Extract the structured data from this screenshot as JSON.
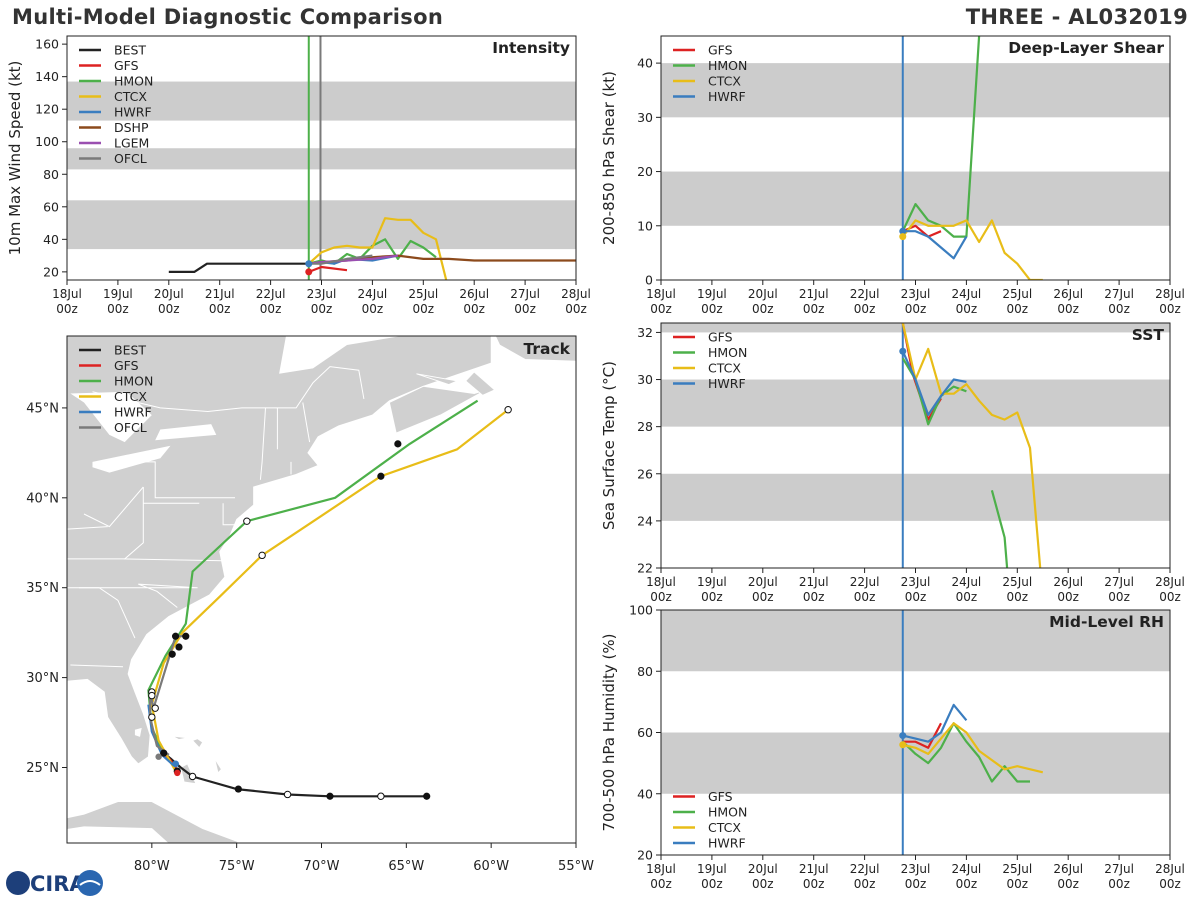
{
  "header": {
    "title_left": "Multi-Model Diagnostic Comparison",
    "title_right": "THREE - AL032019"
  },
  "logo": {
    "text": "CIRA"
  },
  "colors": {
    "BEST": "#222222",
    "GFS": "#dd2222",
    "HMON": "#4db04a",
    "CTCX": "#e8bd18",
    "HWRF": "#3a7dbf",
    "DSHP": "#8c4a1c",
    "LGEM": "#9a4fb0",
    "OFCL": "#7a7a7a",
    "shade": "#cccccc",
    "land": "#d0d0d0"
  },
  "time_axis": {
    "ticks": [
      [
        "18Jul",
        "00z"
      ],
      [
        "19Jul",
        "00z"
      ],
      [
        "20Jul",
        "00z"
      ],
      [
        "21Jul",
        "00z"
      ],
      [
        "22Jul",
        "00z"
      ],
      [
        "23Jul",
        "00z"
      ],
      [
        "24Jul",
        "00z"
      ],
      [
        "25Jul",
        "00z"
      ],
      [
        "26Jul",
        "00z"
      ],
      [
        "27Jul",
        "00z"
      ],
      [
        "28Jul",
        "00z"
      ]
    ],
    "range_days": [
      0,
      10
    ]
  },
  "chart_data": [
    {
      "id": "intensity",
      "type": "line",
      "title": "Intensity",
      "ylabel": "10m Max Wind Speed (kt)",
      "ylim": [
        15,
        165
      ],
      "yticks": [
        20,
        40,
        60,
        80,
        100,
        120,
        140,
        160
      ],
      "shade_bands": [
        [
          34,
          64
        ],
        [
          83,
          96
        ],
        [
          113,
          137
        ]
      ],
      "vlines": [
        {
          "x": 4.75,
          "color": "HMON"
        },
        {
          "x": 4.98,
          "color": "OFCL"
        }
      ],
      "legend": [
        "BEST",
        "GFS",
        "HMON",
        "CTCX",
        "HWRF",
        "DSHP",
        "LGEM",
        "OFCL"
      ],
      "series": [
        {
          "name": "BEST",
          "x": [
            2.0,
            2.5,
            2.75,
            4.75
          ],
          "y": [
            20,
            20,
            25,
            25
          ]
        },
        {
          "name": "GFS",
          "x": [
            4.75,
            5.0,
            5.5
          ],
          "y": [
            20,
            23,
            21
          ]
        },
        {
          "name": "HMON",
          "x": [
            4.75,
            5.0,
            5.25,
            5.5,
            5.75,
            6.0,
            6.25,
            6.5,
            6.75,
            7.0,
            7.25
          ],
          "y": [
            25,
            27,
            25,
            31,
            28,
            36,
            40,
            28,
            39,
            35,
            29
          ]
        },
        {
          "name": "CTCX",
          "x": [
            4.75,
            5.0,
            5.25,
            5.5,
            5.75,
            6.0,
            6.25,
            6.5,
            6.75,
            7.0,
            7.25,
            7.45
          ],
          "y": [
            25,
            32,
            35,
            36,
            35,
            35,
            53,
            52,
            52,
            44,
            40,
            15
          ]
        },
        {
          "name": "HWRF",
          "x": [
            4.75,
            5.0,
            5.25,
            5.5,
            6.0,
            6.5
          ],
          "y": [
            25,
            26,
            25,
            28,
            27,
            30
          ]
        },
        {
          "name": "DSHP",
          "x": [
            4.75,
            5.0,
            5.5,
            6.0,
            6.5,
            7.0,
            7.5,
            8.0,
            9.0,
            10.0
          ],
          "y": [
            25,
            26,
            27,
            29,
            30,
            28,
            28,
            27,
            27,
            27
          ]
        },
        {
          "name": "LGEM",
          "x": [
            4.75,
            5.0,
            5.5,
            6.0,
            6.5
          ],
          "y": [
            25,
            26,
            27,
            28,
            30
          ]
        },
        {
          "name": "OFCL",
          "x": [
            4.75,
            5.0,
            5.5,
            6.0
          ],
          "y": [
            25,
            25,
            28,
            30
          ]
        }
      ],
      "markers": [
        {
          "name": "GFS",
          "x": 4.75,
          "y": 20
        },
        {
          "name": "HWRF",
          "x": 4.75,
          "y": 25
        }
      ]
    },
    {
      "id": "shear",
      "type": "line",
      "title": "Deep-Layer Shear",
      "ylabel": "200-850 hPa Shear (kt)",
      "ylim": [
        0,
        45
      ],
      "yticks": [
        0,
        10,
        20,
        30,
        40
      ],
      "shade_bands": [
        [
          10,
          20
        ],
        [
          30,
          40
        ]
      ],
      "vlines": [
        {
          "x": 4.75,
          "color": "HWRF"
        }
      ],
      "legend": [
        "GFS",
        "HMON",
        "CTCX",
        "HWRF"
      ],
      "series": [
        {
          "name": "GFS",
          "x": [
            4.75,
            5.0,
            5.25,
            5.5
          ],
          "y": [
            9,
            10,
            8,
            9
          ]
        },
        {
          "name": "HMON",
          "x": [
            4.75,
            5.0,
            5.25,
            5.5,
            5.75,
            6.0,
            6.25
          ],
          "y": [
            9,
            14,
            11,
            10,
            8,
            8,
            45
          ]
        },
        {
          "name": "CTCX",
          "x": [
            4.75,
            5.0,
            5.25,
            5.5,
            5.75,
            6.0,
            6.25,
            6.5,
            6.75,
            7.0,
            7.25,
            7.5
          ],
          "y": [
            8,
            11,
            10,
            10,
            10,
            11,
            7,
            11,
            5,
            3,
            0,
            0
          ]
        },
        {
          "name": "HWRF",
          "x": [
            4.75,
            5.0,
            5.25,
            5.5,
            5.75,
            6.0
          ],
          "y": [
            9,
            9,
            8,
            6,
            4,
            8
          ]
        }
      ],
      "markers": [
        {
          "name": "HWRF",
          "x": 4.75,
          "y": 9
        },
        {
          "name": "CTCX",
          "x": 4.75,
          "y": 8
        }
      ]
    },
    {
      "id": "sst",
      "type": "line",
      "title": "SST",
      "ylabel": "Sea Surface Temp (°C)",
      "ylim": [
        22,
        32.4
      ],
      "yticks": [
        22,
        24,
        26,
        28,
        30,
        32
      ],
      "shade_bands": [
        [
          24,
          26
        ],
        [
          28,
          30
        ],
        [
          32,
          32.4
        ]
      ],
      "vlines": [
        {
          "x": 4.75,
          "color": "HWRF"
        }
      ],
      "legend": [
        "GFS",
        "HMON",
        "CTCX",
        "HWRF"
      ],
      "series": [
        {
          "name": "GFS",
          "x": [
            4.75,
            4.95,
            5.25,
            5.5
          ],
          "y": [
            32.4,
            30.2,
            28.3,
            29.2
          ]
        },
        {
          "name": "HMON",
          "x": [
            4.75,
            5.0,
            5.25,
            5.5,
            5.75,
            6.0
          ],
          "y": [
            30.9,
            30.0,
            28.1,
            29.3,
            29.7,
            29.5
          ]
        },
        {
          "name": "HMON",
          "x": [
            6.5,
            6.75,
            6.8
          ],
          "y": [
            25.3,
            23.3,
            22.0
          ]
        },
        {
          "name": "CTCX",
          "x": [
            4.75,
            5.0,
            5.25,
            5.5,
            5.75,
            6.0,
            6.25,
            6.5,
            6.75,
            7.0,
            7.25,
            7.45
          ],
          "y": [
            32.4,
            30.0,
            31.3,
            29.4,
            29.4,
            29.8,
            29.1,
            28.5,
            28.3,
            28.6,
            27.1,
            22.0
          ]
        },
        {
          "name": "HWRF",
          "x": [
            4.75,
            5.0,
            5.25,
            5.5,
            5.75,
            6.0
          ],
          "y": [
            31.2,
            30.0,
            28.5,
            29.3,
            30.0,
            29.9
          ]
        }
      ],
      "markers": [
        {
          "name": "HWRF",
          "x": 4.75,
          "y": 31.2
        }
      ]
    },
    {
      "id": "rh",
      "type": "line",
      "title": "Mid-Level RH",
      "ylabel": "700-500 hPa Humidity (%)",
      "ylim": [
        20,
        100
      ],
      "yticks": [
        20,
        40,
        60,
        80,
        100
      ],
      "shade_bands": [
        [
          40,
          60
        ],
        [
          80,
          100
        ]
      ],
      "vlines": [
        {
          "x": 4.75,
          "color": "HWRF"
        }
      ],
      "legend": [
        "GFS",
        "HMON",
        "CTCX",
        "HWRF"
      ],
      "legend_position": "bottom-left",
      "series": [
        {
          "name": "GFS",
          "x": [
            4.75,
            5.0,
            5.25,
            5.5
          ],
          "y": [
            57,
            57,
            55,
            63
          ]
        },
        {
          "name": "HMON",
          "x": [
            4.75,
            5.0,
            5.25,
            5.5,
            5.75,
            6.0,
            6.25,
            6.5,
            6.75,
            7.0,
            7.25
          ],
          "y": [
            57,
            53,
            50,
            55,
            63,
            57,
            52,
            44,
            49,
            44,
            44
          ]
        },
        {
          "name": "CTCX",
          "x": [
            4.75,
            5.0,
            5.25,
            5.5,
            5.75,
            6.0,
            6.25,
            6.5,
            6.75,
            7.0,
            7.5
          ],
          "y": [
            56,
            55,
            53,
            58,
            63,
            60,
            54,
            51,
            48,
            49,
            47
          ]
        },
        {
          "name": "HWRF",
          "x": [
            4.75,
            5.0,
            5.25,
            5.5,
            5.75,
            6.0
          ],
          "y": [
            59,
            58,
            57,
            60,
            69,
            64
          ]
        }
      ],
      "markers": [
        {
          "name": "HWRF",
          "x": 4.75,
          "y": 59
        },
        {
          "name": "CTCX",
          "x": 4.75,
          "y": 56
        }
      ]
    },
    {
      "id": "track",
      "type": "scatter",
      "title": "Track",
      "xlim": [
        -85,
        -55
      ],
      "ylim": [
        20.8,
        49
      ],
      "xticks": [
        {
          "v": -80,
          "label": "80°W"
        },
        {
          "v": -75,
          "label": "75°W"
        },
        {
          "v": -70,
          "label": "70°W"
        },
        {
          "v": -65,
          "label": "65°W"
        },
        {
          "v": -60,
          "label": "60°W"
        },
        {
          "v": -55,
          "label": "55°W"
        }
      ],
      "yticks": [
        {
          "v": 25,
          "label": "25°N"
        },
        {
          "v": 30,
          "label": "30°N"
        },
        {
          "v": 35,
          "label": "35°N"
        },
        {
          "v": 40,
          "label": "40°N"
        },
        {
          "v": 45,
          "label": "45°N"
        }
      ],
      "legend": [
        "BEST",
        "GFS",
        "HMON",
        "CTCX",
        "HWRF",
        "OFCL"
      ],
      "series": [
        {
          "name": "BEST",
          "lon": [
            -63.8,
            -66.5,
            -69.5,
            -72.0,
            -75.0,
            -77.6,
            -78.3,
            -78.9,
            -79.3
          ],
          "lat": [
            23.4,
            23.4,
            23.4,
            23.5,
            23.8,
            24.5,
            25.0,
            25.5,
            25.8
          ]
        },
        {
          "name": "GFS",
          "lon": [
            -79.3,
            -78.9,
            -78.6,
            -78.5
          ],
          "lat": [
            25.8,
            25.4,
            25.0,
            24.7
          ]
        },
        {
          "name": "HMON",
          "lon": [
            -79.3,
            -80.0,
            -80.2,
            -79.2,
            -78.0,
            -77.6,
            -74.4,
            -69.2,
            -64.8,
            -60.8
          ],
          "lat": [
            25.8,
            27.2,
            29.3,
            31.2,
            33.0,
            35.9,
            38.7,
            40.0,
            43.0,
            45.4
          ]
        },
        {
          "name": "CTCX",
          "lon": [
            -78.6,
            -79.6,
            -80.0,
            -79.3,
            -78.2,
            -76.0,
            -73.5,
            -70.0,
            -66.5,
            -62.0,
            -59.0
          ],
          "lat": [
            24.8,
            26.5,
            28.5,
            30.8,
            32.5,
            34.5,
            36.8,
            39.0,
            41.2,
            42.7,
            44.9
          ]
        },
        {
          "name": "HWRF",
          "lon": [
            -78.7,
            -79.4,
            -80.0,
            -80.2
          ],
          "lat": [
            25.1,
            25.7,
            27.0,
            28.5
          ]
        },
        {
          "name": "OFCL",
          "lon": [
            -79.0,
            -79.7,
            -80.1,
            -80.1,
            -79.9,
            -78.6,
            -78.0
          ],
          "lat": [
            25.7,
            26.2,
            27.8,
            29.2,
            28.3,
            32.3,
            32.3
          ]
        }
      ],
      "filled_points": [
        [
          -78.5,
          24.8
        ],
        [
          -79.3,
          25.8
        ],
        [
          -74.9,
          23.8
        ],
        [
          -69.5,
          23.4
        ],
        [
          -63.8,
          23.4
        ],
        [
          -78.0,
          32.3
        ],
        [
          -78.6,
          32.3
        ],
        [
          -78.4,
          31.7
        ],
        [
          -78.8,
          31.3
        ],
        [
          -65.5,
          43.0
        ],
        [
          -66.5,
          41.2
        ]
      ],
      "open_points": [
        [
          -77.6,
          24.5
        ],
        [
          -72.0,
          23.5
        ],
        [
          -66.5,
          23.4
        ],
        [
          -74.4,
          38.7
        ],
        [
          -73.5,
          36.8
        ],
        [
          -59.0,
          44.9
        ],
        [
          -80.0,
          29.2
        ],
        [
          -80.0,
          29.0
        ],
        [
          -79.8,
          28.3
        ],
        [
          -80.0,
          27.8
        ]
      ]
    }
  ]
}
